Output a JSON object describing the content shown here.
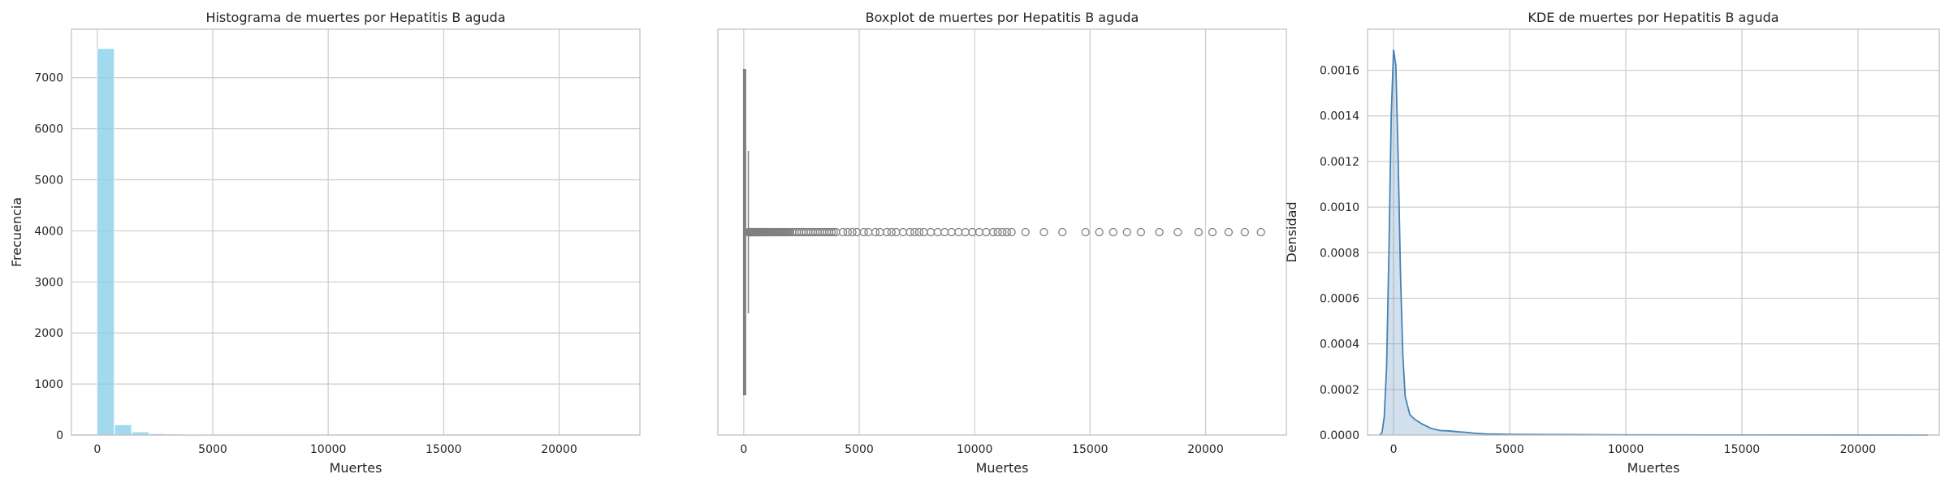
{
  "chart_data": [
    {
      "type": "bar",
      "title": "Histograma de muertes por Hepatitis B aguda",
      "xlabel": "Muertes",
      "ylabel": "Frecuencia",
      "xlim": [
        -1120,
        23500
      ],
      "ylim": [
        0,
        7950
      ],
      "xticks": [
        0,
        5000,
        10000,
        15000,
        20000
      ],
      "yticks": [
        0,
        1000,
        2000,
        3000,
        4000,
        5000,
        6000,
        7000
      ],
      "bin_width": 750,
      "bins": [
        {
          "x0": 0,
          "x1": 750,
          "count": 7570
        },
        {
          "x0": 750,
          "x1": 1500,
          "count": 200
        },
        {
          "x0": 1500,
          "x1": 2250,
          "count": 60
        },
        {
          "x0": 2250,
          "x1": 3000,
          "count": 25
        },
        {
          "x0": 3000,
          "x1": 3750,
          "count": 18
        },
        {
          "x0": 3750,
          "x1": 4500,
          "count": 12
        },
        {
          "x0": 4500,
          "x1": 5250,
          "count": 8
        },
        {
          "x0": 5250,
          "x1": 6000,
          "count": 7
        },
        {
          "x0": 6000,
          "x1": 6750,
          "count": 6
        },
        {
          "x0": 6750,
          "x1": 7500,
          "count": 5
        },
        {
          "x0": 7500,
          "x1": 8250,
          "count": 5
        },
        {
          "x0": 8250,
          "x1": 9000,
          "count": 4
        },
        {
          "x0": 9000,
          "x1": 9750,
          "count": 4
        },
        {
          "x0": 9750,
          "x1": 10500,
          "count": 3
        },
        {
          "x0": 10500,
          "x1": 11250,
          "count": 3
        },
        {
          "x0": 11250,
          "x1": 12000,
          "count": 3
        },
        {
          "x0": 12000,
          "x1": 12750,
          "count": 1
        },
        {
          "x0": 12750,
          "x1": 13500,
          "count": 1
        },
        {
          "x0": 13500,
          "x1": 14250,
          "count": 1
        },
        {
          "x0": 14250,
          "x1": 15000,
          "count": 1
        },
        {
          "x0": 15000,
          "x1": 15750,
          "count": 1
        },
        {
          "x0": 15750,
          "x1": 16500,
          "count": 2
        },
        {
          "x0": 16500,
          "x1": 17250,
          "count": 2
        },
        {
          "x0": 17250,
          "x1": 18000,
          "count": 1
        },
        {
          "x0": 18000,
          "x1": 18750,
          "count": 1
        },
        {
          "x0": 18750,
          "x1": 19500,
          "count": 1
        },
        {
          "x0": 19500,
          "x1": 20250,
          "count": 1
        },
        {
          "x0": 20250,
          "x1": 21000,
          "count": 1
        },
        {
          "x0": 21000,
          "x1": 21750,
          "count": 1
        },
        {
          "x0": 21750,
          "x1": 22500,
          "count": 1
        }
      ],
      "color": "#87ceeb",
      "grid": true
    },
    {
      "type": "box",
      "title": "Boxplot de muertes por Hepatitis B aguda",
      "xlabel": "Muertes",
      "xlim": [
        -1120,
        23500
      ],
      "xticks": [
        0,
        5000,
        10000,
        15000,
        20000
      ],
      "box": {
        "q1": 2,
        "median": 8,
        "q3": 60,
        "whisker_low": 0,
        "whisker_high": 200
      },
      "outliers": [
        210,
        225,
        240,
        255,
        270,
        290,
        310,
        330,
        350,
        370,
        390,
        410,
        430,
        455,
        480,
        505,
        530,
        560,
        590,
        620,
        650,
        680,
        710,
        740,
        770,
        800,
        840,
        880,
        920,
        960,
        1000,
        1040,
        1080,
        1120,
        1160,
        1200,
        1250,
        1300,
        1350,
        1400,
        1450,
        1500,
        1550,
        1600,
        1650,
        1700,
        1750,
        1800,
        1850,
        1900,
        1950,
        2000,
        2100,
        2200,
        2300,
        2400,
        2500,
        2600,
        2700,
        2800,
        2900,
        3000,
        3100,
        3200,
        3300,
        3400,
        3500,
        3600,
        3700,
        3800,
        3900,
        4000,
        4300,
        4500,
        4700,
        4900,
        5200,
        5400,
        5700,
        5900,
        6200,
        6400,
        6600,
        6900,
        7200,
        7400,
        7600,
        7800,
        8100,
        8400,
        8700,
        9000,
        9300,
        9600,
        9900,
        10200,
        10500,
        10800,
        11000,
        11200,
        11400,
        11600,
        12200,
        13000,
        13800,
        14800,
        15400,
        16000,
        16600,
        17200,
        18000,
        18800,
        19700,
        20300,
        21000,
        21700,
        22400
      ],
      "color": "#808080",
      "grid": true
    },
    {
      "type": "area",
      "title": "KDE de muertes por Hepatitis B aguda",
      "xlabel": "Muertes",
      "ylabel": "Densidad",
      "xlim": [
        -1120,
        23500
      ],
      "ylim": [
        0,
        0.00178
      ],
      "xticks": [
        0,
        5000,
        10000,
        15000,
        20000
      ],
      "yticks": [
        0.0,
        0.0002,
        0.0004,
        0.0006,
        0.0008,
        0.001,
        0.0012,
        0.0014,
        0.0016
      ],
      "ytick_labels": [
        "0.0000",
        "0.0002",
        "0.0004",
        "0.0006",
        "0.0008",
        "0.0010",
        "0.0012",
        "0.0014",
        "0.0016"
      ],
      "x": [
        -600,
        -500,
        -400,
        -300,
        -200,
        -100,
        0,
        100,
        200,
        300,
        400,
        500,
        700,
        900,
        1200,
        1600,
        2000,
        2400,
        2800,
        3000,
        3500,
        4000,
        5000,
        7000,
        10000,
        15000,
        20000,
        23000
      ],
      "y": [
        0,
        1e-05,
        8e-05,
        0.0003,
        0.0008,
        0.0014,
        0.00169,
        0.00162,
        0.0012,
        0.0007,
        0.00035,
        0.00017,
        9e-05,
        7e-05,
        5e-05,
        3e-05,
        2e-05,
        1.8e-05,
        1.4e-05,
        1.3e-05,
        8e-06,
        5e-06,
        3e-06,
        2e-06,
        1e-06,
        5e-07,
        3e-07,
        0
      ],
      "line_color": "#4682b4",
      "fill_color": "#4682b4",
      "grid": true
    }
  ]
}
